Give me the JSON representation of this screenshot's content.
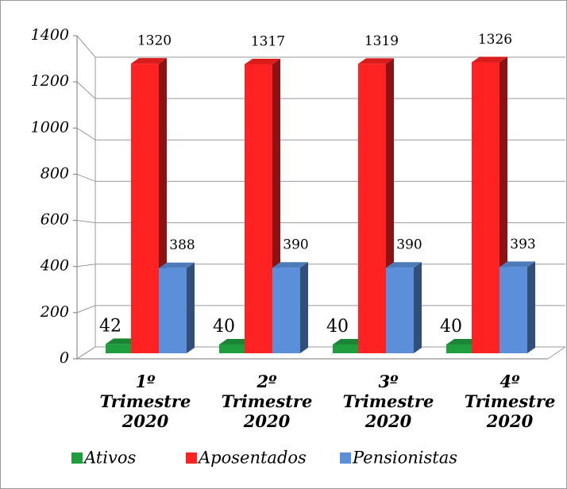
{
  "chart_data": {
    "type": "bar3d",
    "categories": [
      "1º Trimestre 2020",
      "2º Trimestre 2020",
      "3º Trimestre 2020",
      "4º Trimestre 2020"
    ],
    "series": [
      {
        "name": "Ativos",
        "color": "#1e9e3e",
        "values": [
          42,
          40,
          40,
          40
        ]
      },
      {
        "name": "Aposentados",
        "color": "#ff2222",
        "values": [
          1320,
          1317,
          1319,
          1326
        ]
      },
      {
        "name": "Pensionistas",
        "color": "#5b8fd9",
        "values": [
          388,
          390,
          390,
          393
        ]
      }
    ],
    "ylim": [
      0,
      1400
    ],
    "yticks": [
      0,
      200,
      400,
      600,
      800,
      1000,
      1200,
      1400
    ],
    "grid": true,
    "legend": "bottom"
  }
}
